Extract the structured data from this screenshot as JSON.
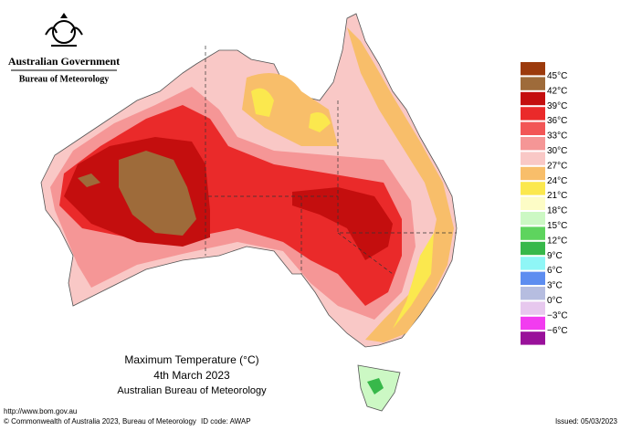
{
  "header": {
    "government": "Australian Government",
    "agency": "Bureau of Meteorology"
  },
  "title": {
    "line1": "Maximum Temperature (°C)",
    "line2": "4th March 2023",
    "line3": "Australian Bureau of Meteorology"
  },
  "legend": {
    "colors": [
      "#9c3a0c",
      "#9e6b3a",
      "#c40e0e",
      "#ea2a2a",
      "#f25656",
      "#f59696",
      "#f9c8c6",
      "#f8be6a",
      "#fbe84e",
      "#fdfcc6",
      "#ccf8c4",
      "#5ed45e",
      "#37b84a",
      "#8ff6f6",
      "#5d8df0",
      "#b6bde0",
      "#e7c8ee",
      "#f23cf0",
      "#99119a"
    ],
    "labels": [
      "45°C",
      "42°C",
      "39°C",
      "36°C",
      "33°C",
      "30°C",
      "27°C",
      "24°C",
      "21°C",
      "18°C",
      "15°C",
      "12°C",
      "9°C",
      "6°C",
      "3°C",
      "0°C",
      "−3°C",
      "−6°C"
    ]
  },
  "footer": {
    "url": "http://www.bom.gov.au",
    "copyright": "© Commonwealth of Australia 2023, Bureau of Meteorology",
    "id_code": "ID code: AWAP",
    "issued": "Issued: 05/03/2023"
  }
}
